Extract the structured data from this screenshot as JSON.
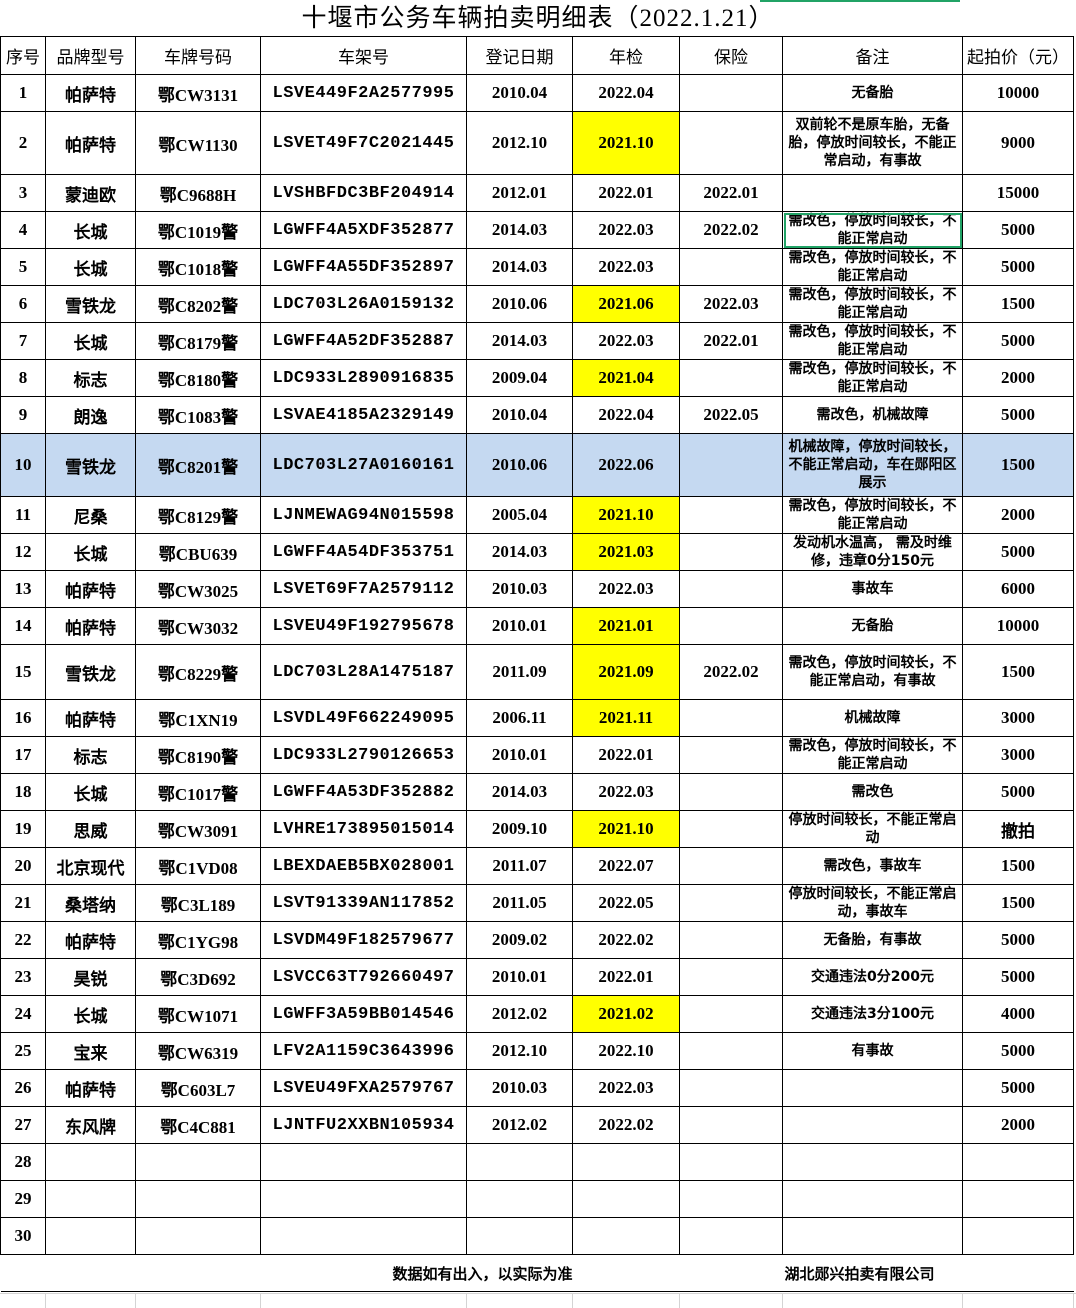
{
  "title": "十堰市公务车辆拍卖明细表（2022.1.21）",
  "colors": {
    "inspection_highlight": "#ffff00",
    "selected_row": "#c5d9f1",
    "active_cell_border": "#21a366"
  },
  "headers": [
    "序号",
    "品牌型号",
    "车牌号码",
    "车架号",
    "登记日期",
    "年检",
    "保险",
    "备注",
    "起拍价（元）"
  ],
  "rows": [
    {
      "no": "1",
      "brand": "帕萨特",
      "plate": "鄂CW3131",
      "vin": "LSVE449F2A2577995",
      "reg": "2010.04",
      "inspect": "2022.04",
      "insure": "",
      "note": "无备胎",
      "price": "10000",
      "hl": false
    },
    {
      "no": "2",
      "brand": "帕萨特",
      "plate": "鄂CW1130",
      "vin": "LSVET49F7C2021445",
      "reg": "2012.10",
      "inspect": "2021.10",
      "insure": "",
      "note": "双前轮不是原车胎，无备胎，停放时间较长，不能正常启动，有事故",
      "price": "9000",
      "hl": true
    },
    {
      "no": "3",
      "brand": "蒙迪欧",
      "plate": "鄂C9688H",
      "vin": "LVSHBFDC3BF204914",
      "reg": "2012.01",
      "inspect": "2022.01",
      "insure": "2022.01",
      "note": "",
      "price": "15000",
      "hl": false
    },
    {
      "no": "4",
      "brand": "长城",
      "plate": "鄂C1019警",
      "vin": "LGWFF4A5XDF352877",
      "reg": "2014.03",
      "inspect": "2022.03",
      "insure": "2022.02",
      "note": "需改色，停放时间较长，不能正常启动",
      "price": "5000",
      "hl": false
    },
    {
      "no": "5",
      "brand": "长城",
      "plate": "鄂C1018警",
      "vin": "LGWFF4A55DF352897",
      "reg": "2014.03",
      "inspect": "2022.03",
      "insure": "",
      "note": "需改色，停放时间较长，不能正常启动",
      "price": "5000",
      "hl": false
    },
    {
      "no": "6",
      "brand": "雪铁龙",
      "plate": "鄂C8202警",
      "vin": "LDC703L26A0159132",
      "reg": "2010.06",
      "inspect": "2021.06",
      "insure": "2022.03",
      "note": "需改色，停放时间较长，不能正常启动",
      "price": "1500",
      "hl": true
    },
    {
      "no": "7",
      "brand": "长城",
      "plate": "鄂C8179警",
      "vin": "LGWFF4A52DF352887",
      "reg": "2014.03",
      "inspect": "2022.03",
      "insure": "2022.01",
      "note": "需改色，停放时间较长，不能正常启动",
      "price": "5000",
      "hl": false
    },
    {
      "no": "8",
      "brand": "标志",
      "plate": "鄂C8180警",
      "vin": "LDC933L2890916835",
      "reg": "2009.04",
      "inspect": "2021.04",
      "insure": "",
      "note": "需改色，停放时间较长，不能正常启动",
      "price": "2000",
      "hl": true
    },
    {
      "no": "9",
      "brand": "朗逸",
      "plate": "鄂C1083警",
      "vin": "LSVAE4185A2329149",
      "reg": "2010.04",
      "inspect": "2022.04",
      "insure": "2022.05",
      "note": "需改色，机械故障",
      "price": "5000",
      "hl": false
    },
    {
      "no": "10",
      "brand": "雪铁龙",
      "plate": "鄂C8201警",
      "vin": "LDC703L27A0160161",
      "reg": "2010.06",
      "inspect": "2022.06",
      "insure": "",
      "note": "机械故障，停放时间较长，不能正常启动，车在郧阳区展示",
      "price": "1500",
      "hl": false
    },
    {
      "no": "11",
      "brand": "尼桑",
      "plate": "鄂C8129警",
      "vin": "LJNMEWAG94N015598",
      "reg": "2005.04",
      "inspect": "2021.10",
      "insure": "",
      "note": "需改色，停放时间较长，不能正常启动",
      "price": "2000",
      "hl": true
    },
    {
      "no": "12",
      "brand": "长城",
      "plate": "鄂CBU639",
      "vin": "LGWFF4A54DF353751",
      "reg": "2014.03",
      "inspect": "2021.03",
      "insure": "",
      "note": "发动机水温高， 需及时维修，违章0分150元",
      "price": "5000",
      "hl": true
    },
    {
      "no": "13",
      "brand": "帕萨特",
      "plate": "鄂CW3025",
      "vin": "LSVET69F7A2579112",
      "reg": "2010.03",
      "inspect": "2022.03",
      "insure": "",
      "note": "事故车",
      "price": "6000",
      "hl": false
    },
    {
      "no": "14",
      "brand": "帕萨特",
      "plate": "鄂CW3032",
      "vin": "LSVEU49F192795678",
      "reg": "2010.01",
      "inspect": "2021.01",
      "insure": "",
      "note": "无备胎",
      "price": "10000",
      "hl": true
    },
    {
      "no": "15",
      "brand": "雪铁龙",
      "plate": "鄂C8229警",
      "vin": "LDC703L28A1475187",
      "reg": "2011.09",
      "inspect": "2021.09",
      "insure": "2022.02",
      "note": "需改色，停放时间较长，不能正常启动，有事故",
      "price": "1500",
      "hl": true
    },
    {
      "no": "16",
      "brand": "帕萨特",
      "plate": "鄂C1XN19",
      "vin": "LSVDL49F662249095",
      "reg": "2006.11",
      "inspect": "2021.11",
      "insure": "",
      "note": "机械故障",
      "price": "3000",
      "hl": true
    },
    {
      "no": "17",
      "brand": "标志",
      "plate": "鄂C8190警",
      "vin": "LDC933L2790126653",
      "reg": "2010.01",
      "inspect": "2022.01",
      "insure": "",
      "note": "需改色，停放时间较长，不能正常启动",
      "price": "3000",
      "hl": false
    },
    {
      "no": "18",
      "brand": "长城",
      "plate": "鄂C1017警",
      "vin": "LGWFF4A53DF352882",
      "reg": "2014.03",
      "inspect": "2022.03",
      "insure": "",
      "note": "需改色",
      "price": "5000",
      "hl": false
    },
    {
      "no": "19",
      "brand": "思威",
      "plate": "鄂CW3091",
      "vin": "LVHRE173895015014",
      "reg": "2009.10",
      "inspect": "2021.10",
      "insure": "",
      "note": "停放时间较长，不能正常启动",
      "price": "撤拍",
      "hl": true
    },
    {
      "no": "20",
      "brand": "北京现代",
      "plate": "鄂C1VD08",
      "vin": "LBEXDAEB5BX028001",
      "reg": "2011.07",
      "inspect": "2022.07",
      "insure": "",
      "note": "需改色，事故车",
      "price": "1500",
      "hl": false
    },
    {
      "no": "21",
      "brand": "桑塔纳",
      "plate": "鄂C3L189",
      "vin": "LSVT91339AN117852",
      "reg": "2011.05",
      "inspect": "2022.05",
      "insure": "",
      "note": "停放时间较长，不能正常启动，事故车",
      "price": "1500",
      "hl": false
    },
    {
      "no": "22",
      "brand": "帕萨特",
      "plate": "鄂C1YG98",
      "vin": "LSVDM49F182579677",
      "reg": "2009.02",
      "inspect": "2022.02",
      "insure": "",
      "note": "无备胎，有事故",
      "price": "5000",
      "hl": false
    },
    {
      "no": "23",
      "brand": "昊锐",
      "plate": "鄂C3D692",
      "vin": "LSVCC63T792660497",
      "reg": "2010.01",
      "inspect": "2022.01",
      "insure": "",
      "note": "交通违法0分200元",
      "price": "5000",
      "hl": false
    },
    {
      "no": "24",
      "brand": "长城",
      "plate": "鄂CW1071",
      "vin": "LGWFF3A59BB014546",
      "reg": "2012.02",
      "inspect": "2021.02",
      "insure": "",
      "note": "交通违法3分100元",
      "price": "4000",
      "hl": true
    },
    {
      "no": "25",
      "brand": "宝来",
      "plate": "鄂CW6319",
      "vin": "LFV2A1159C3643996",
      "reg": "2012.10",
      "inspect": "2022.10",
      "insure": "",
      "note": "有事故",
      "price": "5000",
      "hl": false
    },
    {
      "no": "26",
      "brand": "帕萨特",
      "plate": "鄂C603L7",
      "vin": "LSVEU49FXA2579767",
      "reg": "2010.03",
      "inspect": "2022.03",
      "insure": "",
      "note": "",
      "price": "5000",
      "hl": false
    },
    {
      "no": "27",
      "brand": "东风牌",
      "plate": "鄂C4C881",
      "vin": "LJNTFU2XXBN105934",
      "reg": "2012.02",
      "inspect": "2022.02",
      "insure": "",
      "note": "",
      "price": "2000",
      "hl": false
    },
    {
      "no": "28",
      "brand": "",
      "plate": "",
      "vin": "",
      "reg": "",
      "inspect": "",
      "insure": "",
      "note": "",
      "price": "",
      "hl": false
    },
    {
      "no": "29",
      "brand": "",
      "plate": "",
      "vin": "",
      "reg": "",
      "inspect": "",
      "insure": "",
      "note": "",
      "price": "",
      "hl": false
    },
    {
      "no": "30",
      "brand": "",
      "plate": "",
      "vin": "",
      "reg": "",
      "inspect": "",
      "insure": "",
      "note": "",
      "price": "",
      "hl": false
    }
  ],
  "footer": {
    "disclaimer": "数据如有出入，以实际为准",
    "company": "湖北郧兴拍卖有限公司"
  }
}
